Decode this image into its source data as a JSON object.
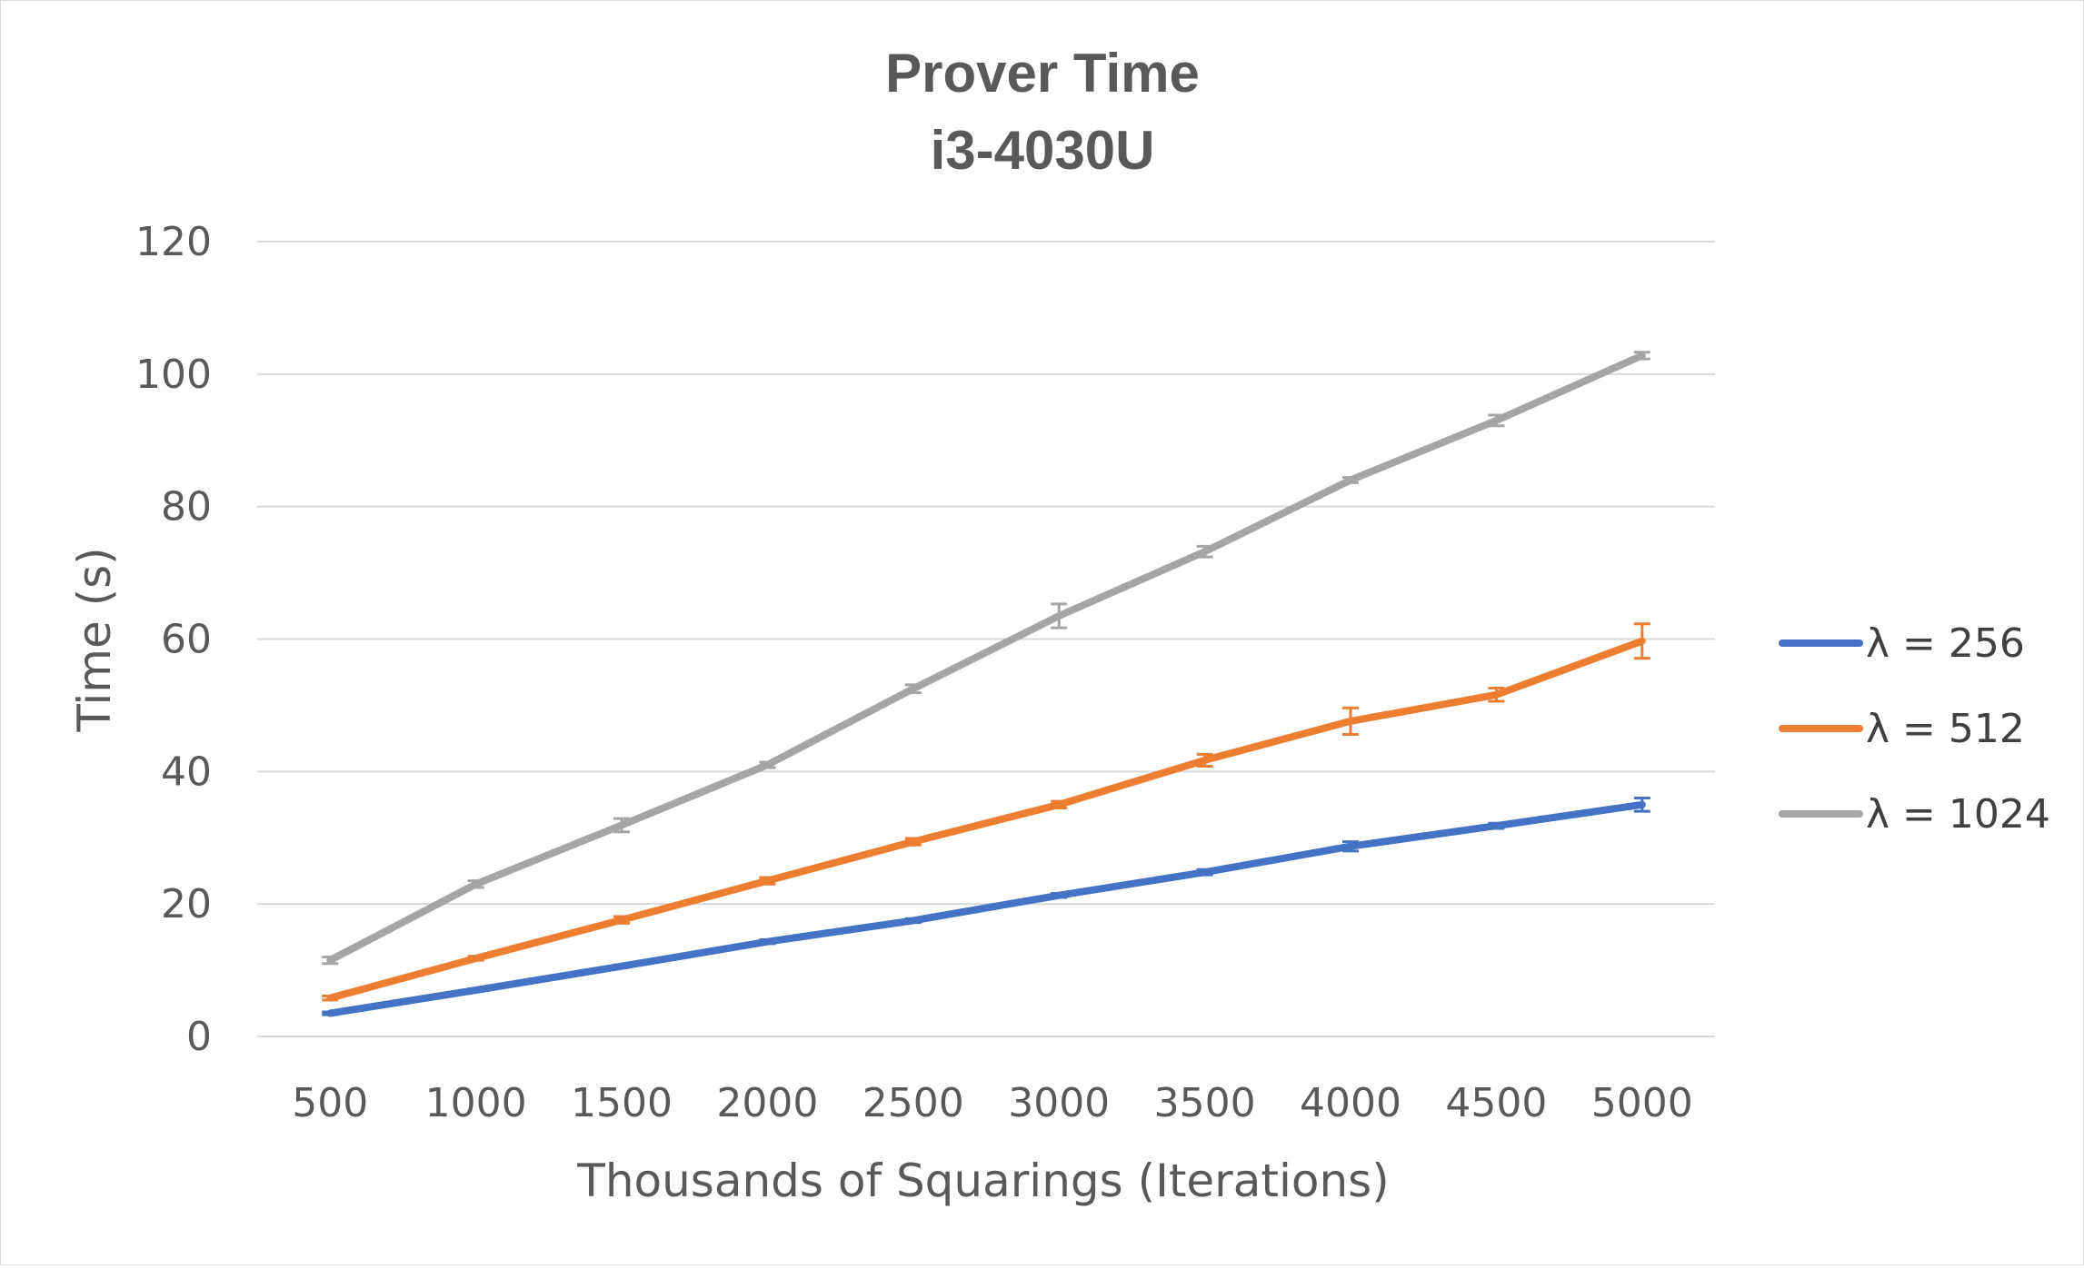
{
  "chart_data": {
    "type": "line",
    "title_lines": [
      "Prover Time",
      "i3-4030U"
    ],
    "xlabel": "Thousands of Squarings (Iterations)",
    "ylabel": "Time (s)",
    "categories": [
      "500",
      "1000",
      "1500",
      "2000",
      "2500",
      "3000",
      "3500",
      "4000",
      "4500",
      "5000"
    ],
    "ylim": [
      0,
      120
    ],
    "yticks": [
      "0",
      "20",
      "40",
      "60",
      "80",
      "100",
      "120"
    ],
    "grid": true,
    "legend_position": "right",
    "series": [
      {
        "name": "λ = 256",
        "color": "#4472C4",
        "values": [
          3.5,
          7.0,
          10.6,
          14.3,
          17.5,
          21.3,
          24.8,
          28.7,
          31.8,
          35.0
        ],
        "errors": [
          0.2,
          0.2,
          0.2,
          0.3,
          0.3,
          0.3,
          0.4,
          0.7,
          0.4,
          1.0
        ]
      },
      {
        "name": "λ = 512",
        "color": "#ED7D31",
        "values": [
          5.8,
          11.8,
          17.6,
          23.5,
          29.4,
          35.0,
          41.7,
          47.6,
          51.6,
          59.7
        ],
        "errors": [
          0.3,
          0.3,
          0.5,
          0.5,
          0.5,
          0.5,
          0.9,
          2.0,
          1.0,
          2.6
        ]
      },
      {
        "name": "λ = 1024",
        "color": "#A5A5A5",
        "values": [
          11.5,
          23.0,
          31.9,
          41.0,
          52.5,
          63.5,
          73.2,
          84.0,
          93.0,
          102.8
        ],
        "errors": [
          0.5,
          0.5,
          1.0,
          0.4,
          0.6,
          1.8,
          0.8,
          0.4,
          0.8,
          0.5
        ]
      }
    ]
  }
}
